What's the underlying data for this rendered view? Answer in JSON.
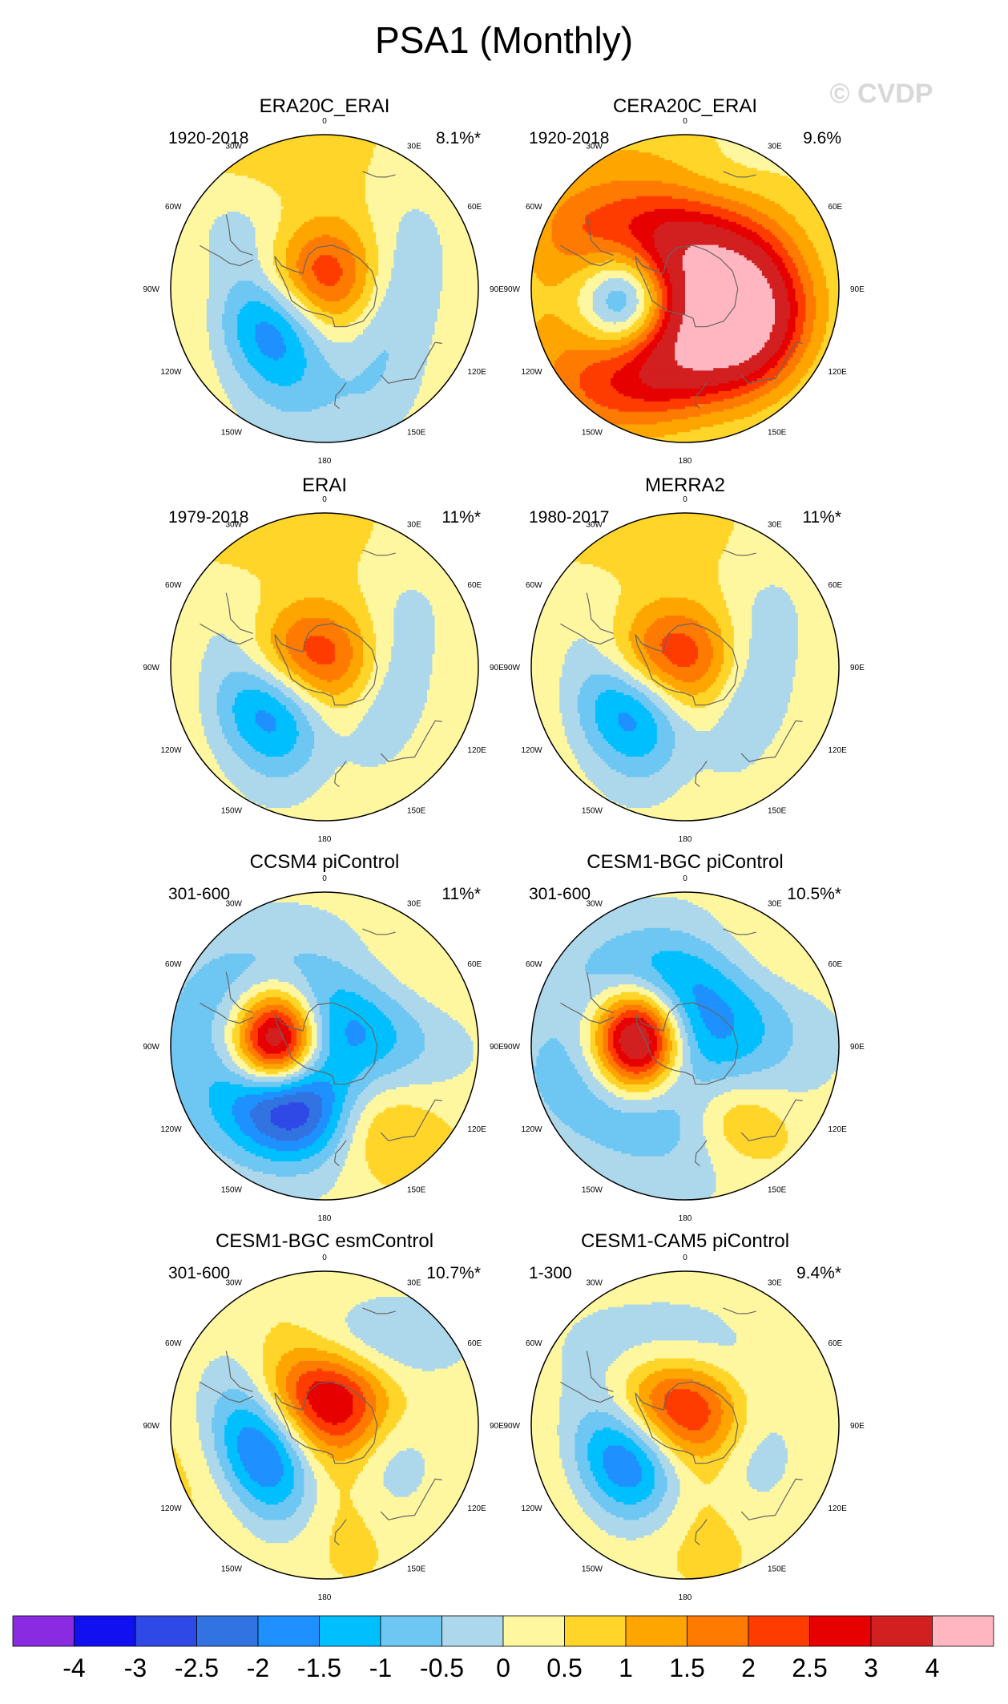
{
  "title": "PSA1 (Monthly)",
  "watermark": "© CVDP",
  "longitude_labels": [
    "0",
    "30E",
    "60E",
    "90E",
    "120E",
    "150E",
    "180",
    "150W",
    "120W",
    "90W",
    "60W",
    "30W"
  ],
  "panels": [
    {
      "name": "ERA20C_ERAI",
      "period": "1920-2018",
      "pct": "8.1%*",
      "features": [
        {
          "lat": 80,
          "lon": 0,
          "sx": 0.16,
          "sy": 0.14,
          "amp": -0.4
        },
        {
          "lat": 62,
          "lon": -110,
          "sx": 0.13,
          "sy": 0.2,
          "amp": -4.0,
          "rot": -20
        },
        {
          "lat": 72,
          "lon": -72,
          "sx": 0.16,
          "sy": 0.12,
          "amp": 2.6
        },
        {
          "lat": 60,
          "lon": -140,
          "sx": 0.3,
          "sy": 0.18,
          "amp": 1.2,
          "rot": 30
        },
        {
          "lat": 78,
          "lon": 60,
          "sx": 0.14,
          "sy": 0.14,
          "amp": 1.2
        },
        {
          "lat": 60,
          "lon": 110,
          "sx": 0.1,
          "sy": 0.22,
          "amp": -1.3,
          "rot": 10
        },
        {
          "lat": 40,
          "lon": 170,
          "sx": 0.18,
          "sy": 0.12,
          "amp": -0.6
        },
        {
          "lat": 20,
          "lon": -20,
          "sx": 0.3,
          "sy": 0.2,
          "amp": 0.7
        }
      ]
    },
    {
      "name": "CERA20C_ERAI",
      "period": "1920-2018",
      "pct": "9.6%",
      "features": [
        {
          "lat": 65,
          "lon": -40,
          "sx": 0.22,
          "sy": 0.12,
          "amp": 2.5,
          "rot": 10
        },
        {
          "lat": 58,
          "lon": -170,
          "sx": 0.25,
          "sy": 0.13,
          "amp": 2.6,
          "rot": -20
        },
        {
          "lat": 63,
          "lon": -100,
          "sx": 0.11,
          "sy": 0.14,
          "amp": -3.5
        },
        {
          "lat": 72,
          "lon": 85,
          "sx": 0.18,
          "sy": 0.18,
          "amp": 1.6
        },
        {
          "lat": 58,
          "lon": 115,
          "sx": 0.12,
          "sy": 0.16,
          "amp": 2.0
        },
        {
          "lat": 55,
          "lon": -130,
          "sx": 0.28,
          "sy": 0.2,
          "amp": 1.3
        },
        {
          "lat": 35,
          "lon": -20,
          "sx": 0.35,
          "sy": 0.22,
          "amp": 0.8
        },
        {
          "lat": 30,
          "lon": 20,
          "sx": 0.14,
          "sy": 0.1,
          "amp": -0.4
        }
      ]
    },
    {
      "name": "ERAI",
      "period": "1979-2018",
      "pct": "11%*",
      "features": [
        {
          "lat": 80,
          "lon": 0,
          "sx": 0.16,
          "sy": 0.14,
          "amp": -0.5
        },
        {
          "lat": 60,
          "lon": -120,
          "sx": 0.14,
          "sy": 0.2,
          "amp": -4.0,
          "rot": -25
        },
        {
          "lat": 72,
          "lon": -72,
          "sx": 0.15,
          "sy": 0.12,
          "amp": 2.7
        },
        {
          "lat": 58,
          "lon": -145,
          "sx": 0.3,
          "sy": 0.18,
          "amp": 1.5,
          "rot": 30
        },
        {
          "lat": 78,
          "lon": 80,
          "sx": 0.15,
          "sy": 0.14,
          "amp": 1.3
        },
        {
          "lat": 60,
          "lon": 115,
          "sx": 0.1,
          "sy": 0.22,
          "amp": -1.4,
          "rot": 10
        },
        {
          "lat": 20,
          "lon": -20,
          "sx": 0.3,
          "sy": 0.2,
          "amp": 0.7
        }
      ]
    },
    {
      "name": "MERRA2",
      "period": "1980-2017",
      "pct": "11%*",
      "features": [
        {
          "lat": 80,
          "lon": 0,
          "sx": 0.16,
          "sy": 0.14,
          "amp": -0.5
        },
        {
          "lat": 60,
          "lon": -120,
          "sx": 0.14,
          "sy": 0.2,
          "amp": -4.0,
          "rot": -25
        },
        {
          "lat": 72,
          "lon": -72,
          "sx": 0.15,
          "sy": 0.12,
          "amp": 2.8
        },
        {
          "lat": 58,
          "lon": -145,
          "sx": 0.3,
          "sy": 0.18,
          "amp": 1.5,
          "rot": 30
        },
        {
          "lat": 78,
          "lon": 80,
          "sx": 0.15,
          "sy": 0.14,
          "amp": 1.3
        },
        {
          "lat": 60,
          "lon": 115,
          "sx": 0.1,
          "sy": 0.22,
          "amp": -1.5,
          "rot": 10
        },
        {
          "lat": 20,
          "lon": -20,
          "sx": 0.3,
          "sy": 0.2,
          "amp": 0.7
        }
      ]
    },
    {
      "name": "CCSM4 piControl",
      "period": "301-600",
      "pct": "11%*",
      "features": [
        {
          "lat": 68,
          "lon": -85,
          "sx": 0.1,
          "sy": 0.12,
          "amp": 5.5
        },
        {
          "lat": 60,
          "lon": -150,
          "sx": 0.14,
          "sy": 0.12,
          "amp": -3.5,
          "rot": 20
        },
        {
          "lat": 75,
          "lon": 60,
          "sx": 0.2,
          "sy": 0.14,
          "amp": -1.6
        },
        {
          "lat": 50,
          "lon": 150,
          "sx": 0.22,
          "sy": 0.12,
          "amp": 1.2,
          "rot": 30
        },
        {
          "lat": 45,
          "lon": 50,
          "sx": 0.2,
          "sy": 0.12,
          "amp": 0.7
        },
        {
          "lat": 55,
          "lon": -40,
          "sx": 0.22,
          "sy": 0.14,
          "amp": -1.0
        },
        {
          "lat": 50,
          "lon": -110,
          "sx": 0.25,
          "sy": 0.2,
          "amp": -0.9
        }
      ]
    },
    {
      "name": "CESM1-BGC piControl",
      "period": "301-600",
      "pct": "10.5%*",
      "features": [
        {
          "lat": 68,
          "lon": -85,
          "sx": 0.1,
          "sy": 0.12,
          "amp": 5.2
        },
        {
          "lat": 58,
          "lon": -130,
          "sx": 0.25,
          "sy": 0.16,
          "amp": -1.5,
          "rot": 20
        },
        {
          "lat": 72,
          "lon": 50,
          "sx": 0.2,
          "sy": 0.16,
          "amp": -1.6
        },
        {
          "lat": 55,
          "lon": -20,
          "sx": 0.2,
          "sy": 0.12,
          "amp": -1.3
        },
        {
          "lat": 50,
          "lon": 145,
          "sx": 0.14,
          "sy": 0.1,
          "amp": 1.3,
          "rot": 30
        },
        {
          "lat": 40,
          "lon": 40,
          "sx": 0.18,
          "sy": 0.12,
          "amp": 0.8
        }
      ]
    },
    {
      "name": "CESM1-BGC esmControl",
      "period": "301-600",
      "pct": "10.7%*",
      "features": [
        {
          "lat": 60,
          "lon": -110,
          "sx": 0.12,
          "sy": 0.2,
          "amp": -4.0,
          "rot": -20
        },
        {
          "lat": 72,
          "lon": -40,
          "sx": 0.17,
          "sy": 0.13,
          "amp": 2.2
        },
        {
          "lat": 75,
          "lon": 60,
          "sx": 0.14,
          "sy": 0.12,
          "amp": 1.5
        },
        {
          "lat": 55,
          "lon": -145,
          "sx": 0.28,
          "sy": 0.18,
          "amp": 1.4,
          "rot": 30
        },
        {
          "lat": 50,
          "lon": 20,
          "sx": 0.2,
          "sy": 0.1,
          "amp": -1.0
        },
        {
          "lat": 60,
          "lon": 110,
          "sx": 0.1,
          "sy": 0.18,
          "amp": -1.0
        },
        {
          "lat": 40,
          "lon": -30,
          "sx": 0.25,
          "sy": 0.15,
          "amp": 0.5
        }
      ]
    },
    {
      "name": "CESM1-CAM5 piControl",
      "period": "1-300",
      "pct": "9.4%*",
      "features": [
        {
          "lat": 60,
          "lon": -115,
          "sx": 0.13,
          "sy": 0.18,
          "amp": -4.0,
          "rot": -20
        },
        {
          "lat": 72,
          "lon": -60,
          "sx": 0.15,
          "sy": 0.12,
          "amp": 2.5
        },
        {
          "lat": 55,
          "lon": -145,
          "sx": 0.28,
          "sy": 0.18,
          "amp": 1.4,
          "rot": 30
        },
        {
          "lat": 55,
          "lon": 10,
          "sx": 0.2,
          "sy": 0.1,
          "amp": -0.9
        },
        {
          "lat": 60,
          "lon": 110,
          "sx": 0.1,
          "sy": 0.18,
          "amp": -0.9
        },
        {
          "lat": 78,
          "lon": 70,
          "sx": 0.13,
          "sy": 0.12,
          "amp": 1.2
        },
        {
          "lat": 40,
          "lon": 40,
          "sx": 0.18,
          "sy": 0.1,
          "amp": 0.5
        }
      ]
    }
  ],
  "colorbar": {
    "labels": [
      "-4",
      "-3",
      "-2.5",
      "-2",
      "-1.5",
      "-1",
      "-0.5",
      "0",
      "0.5",
      "1",
      "1.5",
      "2",
      "2.5",
      "3",
      "4"
    ],
    "colors": [
      "#8a2be2",
      "#1010f0",
      "#2e49e6",
      "#3273e2",
      "#1e90ff",
      "#00bfff",
      "#6ec6f2",
      "#add8ec",
      "#fff7a0",
      "#ffd52a",
      "#ffa500",
      "#ff7a00",
      "#ff3c00",
      "#e60000",
      "#d21f1f",
      "#ffb6c1"
    ]
  }
}
